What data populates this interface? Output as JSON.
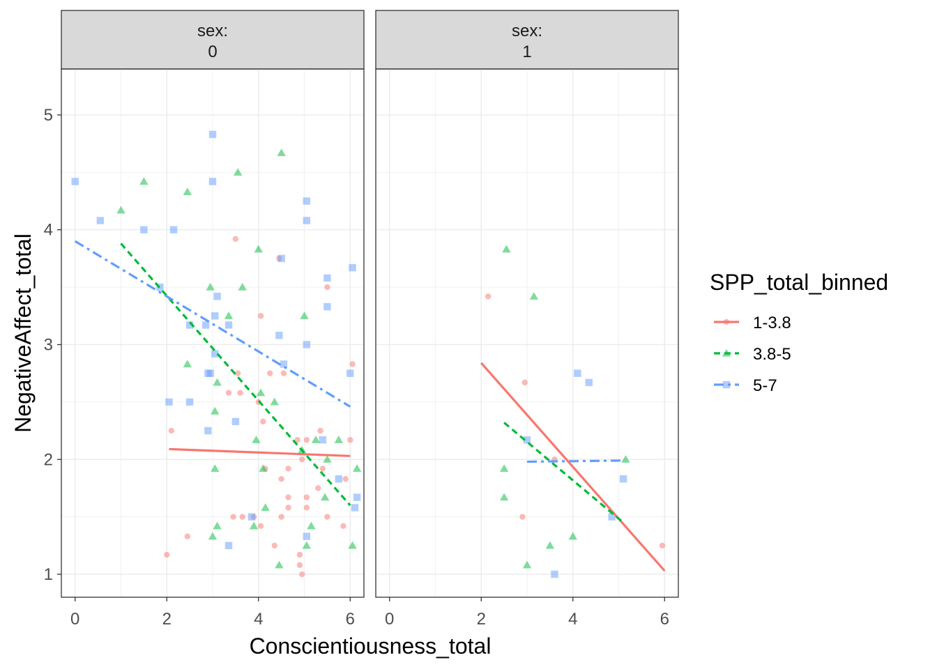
{
  "chart_data": {
    "type": "scatter",
    "xlabel": "Conscientiousness_total",
    "ylabel": "NegativeAffect_total",
    "xlim": [
      -0.3,
      6.3
    ],
    "ylim": [
      0.8,
      5.4
    ],
    "x_ticks": [
      "0",
      "2",
      "4",
      "6"
    ],
    "y_ticks": [
      "1",
      "2",
      "3",
      "4",
      "5"
    ],
    "x_tick_values": [
      0,
      2,
      4,
      6
    ],
    "y_tick_values": [
      1,
      2,
      3,
      4,
      5
    ],
    "grid": true,
    "legend_placement": "right",
    "legend": {
      "title": "SPP_total_binned",
      "entries": [
        {
          "label": "1-3.8",
          "color": "#F8766D",
          "shape": "circle",
          "line": "solid"
        },
        {
          "label": "3.8-5",
          "color": "#00BA38",
          "shape": "triangle",
          "line": "dashed"
        },
        {
          "label": "5-7",
          "color": "#619CFF",
          "shape": "square",
          "line": "dashdot"
        }
      ]
    },
    "panels": [
      {
        "strip": [
          "sex:",
          "0"
        ],
        "series": [
          {
            "name": "1-3.8",
            "points": [
              [
                2.0,
                1.17
              ],
              [
                2.1,
                2.25
              ],
              [
                2.45,
                1.33
              ],
              [
                3.35,
                2.58
              ],
              [
                3.5,
                3.92
              ],
              [
                3.45,
                1.5
              ],
              [
                3.6,
                2.58
              ],
              [
                3.65,
                1.5
              ],
              [
                3.55,
                2.75
              ],
              [
                3.9,
                1.5
              ],
              [
                4.0,
                2.5
              ],
              [
                4.05,
                3.25
              ],
              [
                4.1,
                2.33
              ],
              [
                4.15,
                1.92
              ],
              [
                4.05,
                1.42
              ],
              [
                4.25,
                2.75
              ],
              [
                4.35,
                1.25
              ],
              [
                4.5,
                1.5
              ],
              [
                4.5,
                1.83
              ],
              [
                4.55,
                2.75
              ],
              [
                4.65,
                1.58
              ],
              [
                4.65,
                1.67
              ],
              [
                4.65,
                1.92
              ],
              [
                4.85,
                2.17
              ],
              [
                4.9,
                1.08
              ],
              [
                4.9,
                1.17
              ],
              [
                4.95,
                1.0
              ],
              [
                4.95,
                2.0
              ],
              [
                5.05,
                1.58
              ],
              [
                5.05,
                1.67
              ],
              [
                5.05,
                2.17
              ],
              [
                5.3,
                1.75
              ],
              [
                5.35,
                2.25
              ],
              [
                5.4,
                1.92
              ],
              [
                5.5,
                1.5
              ],
              [
                5.5,
                3.5
              ],
              [
                5.85,
                1.42
              ],
              [
                5.9,
                1.83
              ],
              [
                6.0,
                2.17
              ],
              [
                6.05,
                2.83
              ],
              [
                4.45,
                3.75
              ]
            ],
            "fit": [
              [
                2.05,
                2.09
              ],
              [
                6.0,
                2.03
              ]
            ]
          },
          {
            "name": "3.8-5",
            "points": [
              [
                1.0,
                4.17
              ],
              [
                1.5,
                4.42
              ],
              [
                2.45,
                2.83
              ],
              [
                2.45,
                4.33
              ],
              [
                2.95,
                3.5
              ],
              [
                3.05,
                1.92
              ],
              [
                3.05,
                2.42
              ],
              [
                3.1,
                1.42
              ],
              [
                3.1,
                2.67
              ],
              [
                3.0,
                1.33
              ],
              [
                3.35,
                3.25
              ],
              [
                3.55,
                4.5
              ],
              [
                3.65,
                3.5
              ],
              [
                3.9,
                1.42
              ],
              [
                3.95,
                2.17
              ],
              [
                4.0,
                3.83
              ],
              [
                4.05,
                2.58
              ],
              [
                4.1,
                1.92
              ],
              [
                4.15,
                1.58
              ],
              [
                4.35,
                2.5
              ],
              [
                4.45,
                1.08
              ],
              [
                4.5,
                4.67
              ],
              [
                4.95,
                2.08
              ],
              [
                5.0,
                3.25
              ],
              [
                5.05,
                1.25
              ],
              [
                5.15,
                1.42
              ],
              [
                5.25,
                2.17
              ],
              [
                5.45,
                1.67
              ],
              [
                5.5,
                2.0
              ],
              [
                5.75,
                2.17
              ],
              [
                6.05,
                1.25
              ],
              [
                6.15,
                1.92
              ]
            ],
            "fit": [
              [
                1.0,
                3.88
              ],
              [
                6.0,
                1.6
              ]
            ]
          },
          {
            "name": "5-7",
            "points": [
              [
                0.0,
                4.42
              ],
              [
                0.55,
                4.08
              ],
              [
                1.5,
                4.0
              ],
              [
                2.15,
                4.0
              ],
              [
                1.85,
                3.5
              ],
              [
                2.05,
                2.5
              ],
              [
                2.5,
                2.5
              ],
              [
                2.5,
                3.17
              ],
              [
                2.85,
                3.17
              ],
              [
                2.9,
                2.75
              ],
              [
                2.95,
                2.75
              ],
              [
                3.0,
                4.83
              ],
              [
                3.0,
                4.42
              ],
              [
                3.05,
                3.25
              ],
              [
                3.1,
                3.42
              ],
              [
                3.05,
                2.92
              ],
              [
                2.9,
                2.25
              ],
              [
                3.35,
                1.25
              ],
              [
                3.5,
                2.33
              ],
              [
                3.35,
                3.17
              ],
              [
                3.85,
                1.5
              ],
              [
                4.45,
                3.08
              ],
              [
                4.55,
                2.83
              ],
              [
                4.5,
                3.75
              ],
              [
                5.05,
                4.25
              ],
              [
                5.05,
                4.08
              ],
              [
                5.05,
                3.0
              ],
              [
                5.05,
                1.33
              ],
              [
                5.4,
                2.17
              ],
              [
                5.5,
                3.58
              ],
              [
                5.5,
                3.33
              ],
              [
                5.75,
                1.83
              ],
              [
                6.0,
                2.75
              ],
              [
                6.05,
                3.67
              ],
              [
                6.1,
                1.58
              ],
              [
                6.15,
                1.67
              ]
            ],
            "fit": [
              [
                0.0,
                3.9
              ],
              [
                6.0,
                2.46
              ]
            ]
          }
        ]
      },
      {
        "strip": [
          "sex:",
          "1"
        ],
        "series": [
          {
            "name": "1-3.8",
            "points": [
              [
                2.15,
                3.42
              ],
              [
                2.95,
                2.67
              ],
              [
                2.9,
                1.5
              ],
              [
                3.6,
                2.0
              ],
              [
                5.95,
                1.25
              ]
            ],
            "fit": [
              [
                2.0,
                2.84
              ],
              [
                6.0,
                1.03
              ]
            ]
          },
          {
            "name": "3.8-5",
            "points": [
              [
                2.55,
                3.83
              ],
              [
                2.5,
                1.92
              ],
              [
                2.5,
                1.67
              ],
              [
                3.15,
                3.42
              ],
              [
                3.0,
                1.08
              ],
              [
                3.5,
                1.25
              ],
              [
                4.0,
                1.33
              ],
              [
                5.15,
                2.0
              ]
            ],
            "fit": [
              [
                2.5,
                2.32
              ],
              [
                5.1,
                1.45
              ]
            ]
          },
          {
            "name": "5-7",
            "points": [
              [
                4.1,
                2.75
              ],
              [
                4.35,
                2.67
              ],
              [
                3.0,
                2.17
              ],
              [
                3.6,
                1.0
              ],
              [
                4.85,
                1.5
              ],
              [
                5.1,
                1.83
              ]
            ],
            "fit": [
              [
                3.0,
                1.98
              ],
              [
                5.1,
                1.99
              ]
            ]
          }
        ]
      }
    ]
  }
}
